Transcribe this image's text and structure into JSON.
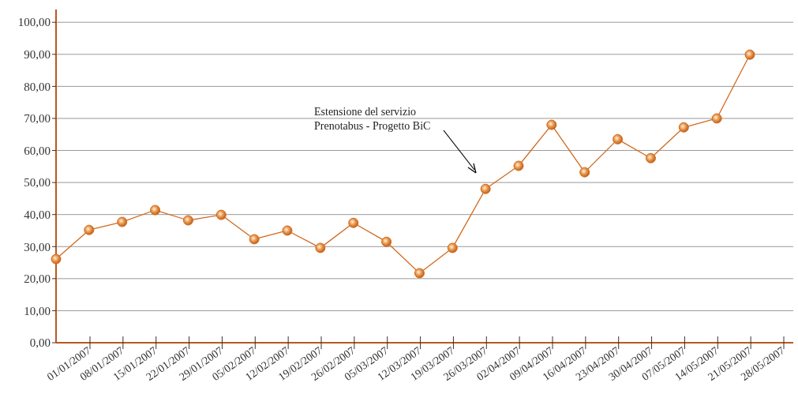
{
  "chart_data": {
    "type": "line",
    "categories": [
      "01/01/2007",
      "08/01/2007",
      "15/01/2007",
      "22/01/2007",
      "29/01/2007",
      "05/02/2007",
      "12/02/2007",
      "19/02/2007",
      "26/02/2007",
      "05/03/2007",
      "12/03/2007",
      "19/03/2007",
      "26/03/2007",
      "02/04/2007",
      "09/04/2007",
      "16/04/2007",
      "23/04/2007",
      "30/04/2007",
      "07/05/2007",
      "14/05/2007",
      "21/05/2007",
      "28/05/2007"
    ],
    "series": [
      {
        "color": "#d2691e",
        "values": [
          26.1,
          35.2,
          37.7,
          41.4,
          38.2,
          39.9,
          32.3,
          35.0,
          29.6,
          37.4,
          31.5,
          21.7,
          29.6,
          48.0,
          55.2,
          68.0,
          53.2,
          63.5,
          57.6,
          67.2,
          70.0,
          89.9
        ]
      }
    ],
    "ylim": [
      0,
      104
    ],
    "yticks": [
      {
        "value": 0,
        "label": "0,00"
      },
      {
        "value": 10,
        "label": "10,00"
      },
      {
        "value": 20,
        "label": "20,00"
      },
      {
        "value": 30,
        "label": "30,00"
      },
      {
        "value": 40,
        "label": "40,00"
      },
      {
        "value": 50,
        "label": "50,00"
      },
      {
        "value": 60,
        "label": "60,00"
      },
      {
        "value": 70,
        "label": "70,00"
      },
      {
        "value": 80,
        "label": "80,00"
      },
      {
        "value": 90,
        "label": "90,00"
      },
      {
        "value": 100,
        "label": "100,00"
      }
    ],
    "grid": "y",
    "marker": "circle",
    "line_style": "solid",
    "annotations": [
      "Estensione del servizio\nPrenotabus - Progetto BiC"
    ]
  }
}
